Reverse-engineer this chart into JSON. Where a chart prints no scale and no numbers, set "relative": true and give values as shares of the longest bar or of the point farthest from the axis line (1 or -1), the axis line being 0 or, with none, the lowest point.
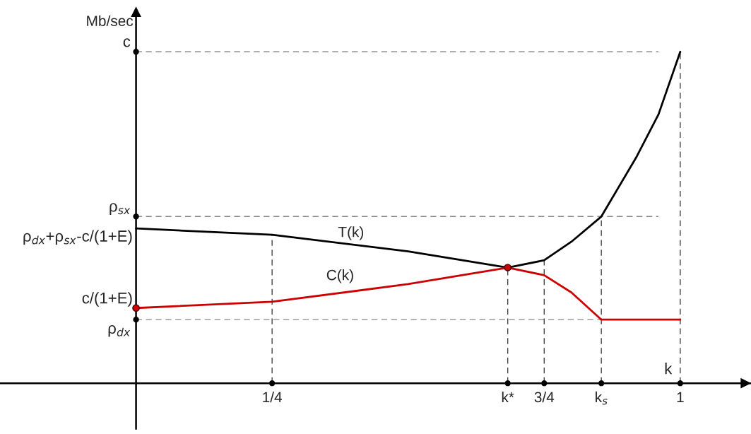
{
  "chart_data": {
    "type": "line",
    "relative": true,
    "xlabel": "k",
    "ylabel": "Mb/sec",
    "x": [
      0,
      0.25,
      0.5,
      0.683,
      0.75,
      0.8,
      0.855,
      0.92,
      0.96,
      1
    ],
    "xlim": [
      -0.25,
      1.13
    ],
    "xticks": [
      {
        "value": 0.25,
        "label": "1/4"
      },
      {
        "value": 0.683,
        "label": "k*"
      },
      {
        "value": 0.75,
        "label": "3/4"
      },
      {
        "value": 0.855,
        "label": "k$_{s}$"
      },
      {
        "value": 1,
        "label": "1"
      }
    ],
    "series": [
      {
        "name": "T(k)",
        "color": "#000000",
        "values": [
          0.467,
          0.448,
          0.398,
          0.349,
          0.371,
          0.427,
          0.503,
          0.684,
          0.811,
          1
        ]
      },
      {
        "name": "C(k)",
        "color": "#cc0000",
        "values": [
          0.227,
          0.246,
          0.299,
          0.349,
          0.326,
          0.274,
          0.192,
          0.192,
          0.192,
          0.192
        ]
      },
      {
        "type": "scatter",
        "color": "#cc0000",
        "marker": "circle",
        "x": [
          0,
          0.683
        ],
        "values": [
          0.227,
          0.349
        ]
      }
    ],
    "ref_lines": [
      {
        "axis": "y",
        "value": 1,
        "label": "c",
        "line_style": "dashed",
        "color": "#888888"
      },
      {
        "axis": "y",
        "value": 0.503,
        "label": "ρ$_{sx}$",
        "line_style": "dashed",
        "color": "#888888"
      },
      {
        "axis": "y",
        "value": 0.192,
        "label": "ρ$_{dx}$",
        "line_style": "dashed",
        "color": "#888888"
      },
      {
        "axis": "x",
        "value": 0.25,
        "line_style": "dashed",
        "color": "#444444"
      },
      {
        "axis": "x",
        "value": 0.683,
        "line_style": "dashed",
        "color": "#444444"
      },
      {
        "axis": "x",
        "value": 0.75,
        "line_style": "dashed",
        "color": "#444444"
      },
      {
        "axis": "x",
        "value": 0.855,
        "line_style": "dashed",
        "color": "#444444"
      },
      {
        "axis": "x",
        "value": 1,
        "line_style": "dashed",
        "color": "#444444"
      }
    ],
    "annotations": [
      {
        "text": "ρ$_{dx}$+ρ$_{sx}$-c/(1+E)",
        "x": 0,
        "y": 0.467
      },
      {
        "text": "c/(1+E)",
        "x": 0,
        "y": 0.227
      }
    ],
    "legend": false,
    "line_style": "solid",
    "marker": "none"
  }
}
